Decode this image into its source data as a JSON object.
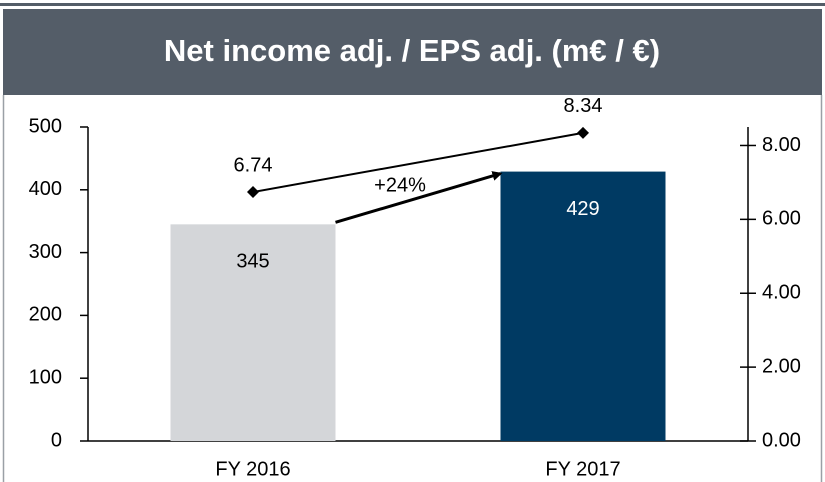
{
  "chart_data": {
    "type": "bar",
    "title": "Net income adj. / EPS adj. (m€ / €)",
    "categories": [
      "FY 2016",
      "FY 2017"
    ],
    "series": [
      {
        "type": "bar",
        "colors": [
          "#d4d6d9",
          "#003a63"
        ],
        "label_colors": [
          "#000000",
          "#ffffff"
        ],
        "values": [
          345,
          429
        ]
      },
      {
        "type": "line",
        "axis": "y2",
        "color": "#000000",
        "values": [
          6.74,
          8.34
        ]
      }
    ],
    "annotation": "+24%",
    "ylim": [
      0,
      500
    ],
    "yticks": [
      0,
      100,
      200,
      300,
      400,
      500
    ],
    "y2lim": [
      0,
      8.5
    ],
    "y2ticks": [
      {
        "value": 0,
        "label": "0.00"
      },
      {
        "value": 2,
        "label": "2.00"
      },
      {
        "value": 4,
        "label": "4.00"
      },
      {
        "value": 6,
        "label": "6.00"
      },
      {
        "value": 8,
        "label": "8.00"
      }
    ]
  }
}
